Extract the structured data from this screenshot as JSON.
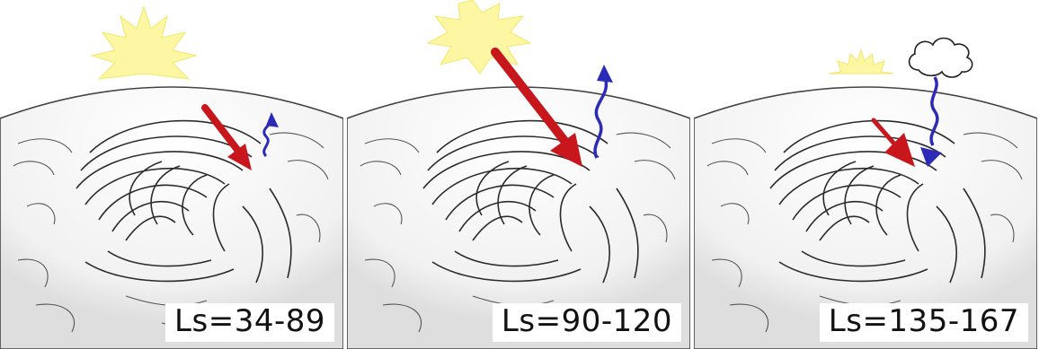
{
  "panels": [
    {
      "label": "Ls=34-89",
      "sun": "large",
      "heating_arrow": "medium",
      "vapor_arrow": "small-up",
      "cloud": false
    },
    {
      "label": "Ls=90-120",
      "sun": "large",
      "heating_arrow": "large",
      "vapor_arrow": "medium-up",
      "cloud": false
    },
    {
      "label": "Ls=135-167",
      "sun": "small",
      "heating_arrow": "small",
      "vapor_arrow": "down",
      "cloud": true
    }
  ],
  "icons": {
    "sun": "sun-icon",
    "heating_arrow": "red-arrow-icon",
    "vapor_arrow": "blue-wavy-arrow-icon",
    "cloud": "cloud-icon"
  },
  "colors": {
    "sun_fill": "#fdf7a3",
    "sun_stroke": "#f1e76a",
    "heating_arrow": "#c8161d",
    "vapor_arrow": "#2c2bb8",
    "surface_line": "#333333"
  }
}
